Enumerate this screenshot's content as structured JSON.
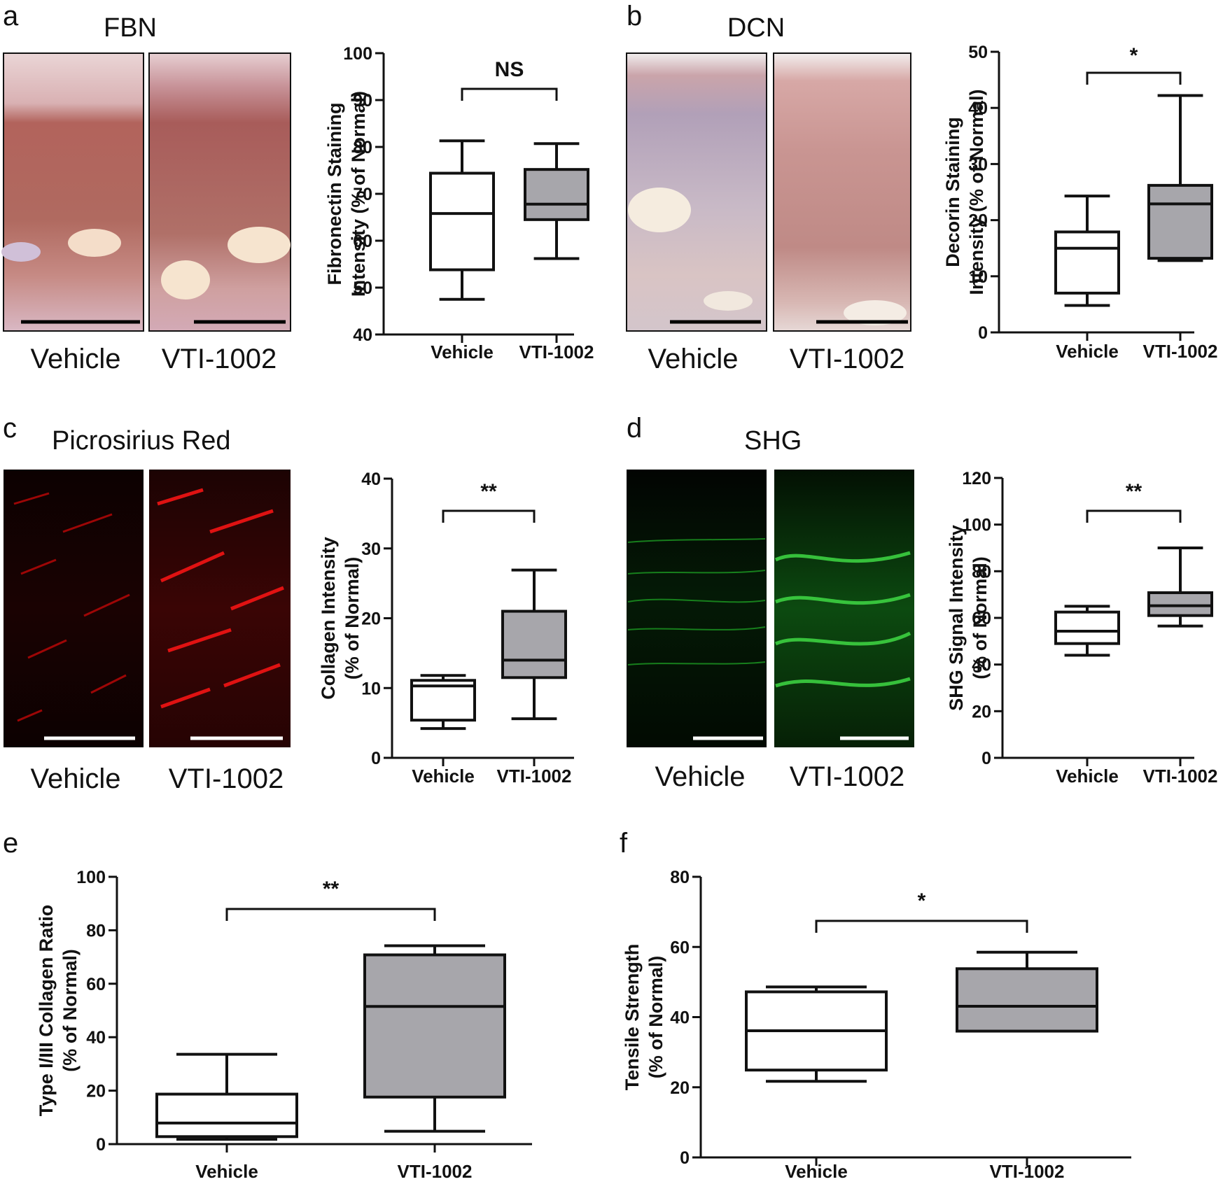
{
  "colors": {
    "vehicle_box": "#ffffff",
    "treatment_box": "#a7a6ab",
    "stroke": "#111111"
  },
  "panels": [
    {
      "letter": "a",
      "stain_title": "FBN",
      "image_labels": [
        "Vehicle",
        "VTI-1002"
      ],
      "image_style": [
        "he-vehicle",
        "he-treated"
      ]
    },
    {
      "letter": "b",
      "stain_title": "DCN",
      "image_labels": [
        "Vehicle",
        "VTI-1002"
      ],
      "image_style": [
        "dcn-vehicle",
        "dcn-treated"
      ]
    },
    {
      "letter": "c",
      "stain_title": "Picrosirius Red",
      "image_labels": [
        "Vehicle",
        "VTI-1002"
      ],
      "image_style": [
        "red-vehicle",
        "red-treated"
      ]
    },
    {
      "letter": "d",
      "stain_title": "SHG",
      "image_labels": [
        "Vehicle",
        "VTI-1002"
      ],
      "image_style": [
        "green-vehicle",
        "green-treated"
      ]
    },
    {
      "letter": "e"
    },
    {
      "letter": "f"
    }
  ],
  "chart_data": [
    {
      "type": "box",
      "panel": "a",
      "ylabel_lines": [
        "Fibronectin Staining",
        "Intensity (% of Normal)"
      ],
      "ylim": [
        40,
        100
      ],
      "yticks": [
        40,
        50,
        60,
        70,
        80,
        90,
        100
      ],
      "categories": [
        "Vehicle",
        "VTI-1002"
      ],
      "boxes": [
        {
          "min": 47.5,
          "q1": 53.8,
          "median": 65.8,
          "q3": 74.4,
          "max": 81.3
        },
        {
          "min": 56.2,
          "q1": 64.5,
          "median": 67.8,
          "q3": 75.2,
          "max": 80.7
        }
      ],
      "significance": "NS"
    },
    {
      "type": "box",
      "panel": "b",
      "ylabel_lines": [
        "Decorin Staining",
        "Intensity (% of Normal)"
      ],
      "ylim": [
        0,
        50
      ],
      "yticks": [
        0,
        10,
        20,
        30,
        40,
        50
      ],
      "categories": [
        "Vehicle",
        "VTI-1002"
      ],
      "boxes": [
        {
          "min": 4.8,
          "q1": 7.0,
          "median": 15.0,
          "q3": 17.9,
          "max": 24.3
        },
        {
          "min": 12.8,
          "q1": 13.2,
          "median": 22.9,
          "q3": 26.2,
          "max": 42.2
        }
      ],
      "significance": "*"
    },
    {
      "type": "box",
      "panel": "c",
      "ylabel_lines": [
        "Collagen Intensity",
        "(% of Normal)"
      ],
      "ylim": [
        0,
        40
      ],
      "yticks": [
        0,
        10,
        20,
        30,
        40
      ],
      "categories": [
        "Vehicle",
        "VTI-1002"
      ],
      "boxes": [
        {
          "min": 4.2,
          "q1": 5.4,
          "median": 10.3,
          "q3": 11.1,
          "max": 11.8
        },
        {
          "min": 5.6,
          "q1": 11.5,
          "median": 14.0,
          "q3": 21.0,
          "max": 26.9
        }
      ],
      "significance": "**"
    },
    {
      "type": "box",
      "panel": "d",
      "ylabel_lines": [
        "SHG Signal Intensity",
        "(% of Normal)"
      ],
      "ylim": [
        0,
        120
      ],
      "yticks": [
        0,
        20,
        40,
        60,
        80,
        100,
        120
      ],
      "categories": [
        "Vehicle",
        "VTI-1002"
      ],
      "boxes": [
        {
          "min": 44.0,
          "q1": 49.0,
          "median": 54.3,
          "q3": 62.5,
          "max": 65.0
        },
        {
          "min": 56.5,
          "q1": 61.0,
          "median": 65.2,
          "q3": 70.8,
          "max": 90.0
        }
      ],
      "significance": "**"
    },
    {
      "type": "box",
      "panel": "e",
      "ylabel_lines": [
        "Type I/III Collagen Ratio",
        "(% of Normal)"
      ],
      "ylim": [
        0,
        100
      ],
      "yticks": [
        0,
        20,
        40,
        60,
        80,
        100
      ],
      "categories": [
        "Vehicle",
        "VTI-1002"
      ],
      "boxes": [
        {
          "min": 1.8,
          "q1": 2.8,
          "median": 7.9,
          "q3": 18.7,
          "max": 33.6
        },
        {
          "min": 4.8,
          "q1": 17.6,
          "median": 51.5,
          "q3": 70.8,
          "max": 74.2
        }
      ],
      "significance": "**"
    },
    {
      "type": "box",
      "panel": "f",
      "ylabel_lines": [
        "Tensile Strength",
        "(% of Normal)"
      ],
      "ylim": [
        0,
        80
      ],
      "yticks": [
        0,
        20,
        40,
        60,
        80
      ],
      "categories": [
        "Vehicle",
        "VTI-1002"
      ],
      "boxes": [
        {
          "min": 21.7,
          "q1": 24.9,
          "median": 36.1,
          "q3": 47.2,
          "max": 48.6
        },
        {
          "min": 36.0,
          "q1": 36.0,
          "median": 43.1,
          "q3": 53.8,
          "max": 58.5
        }
      ],
      "significance": "*"
    }
  ]
}
